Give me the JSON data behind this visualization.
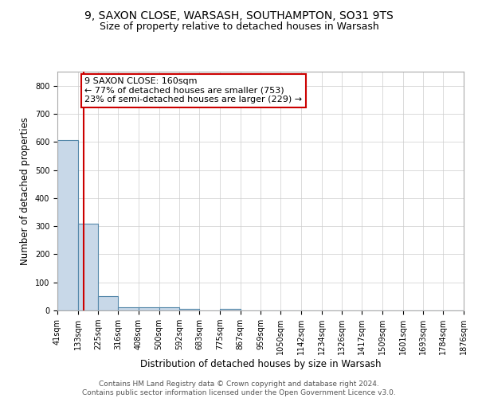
{
  "title": "9, SAXON CLOSE, WARSASH, SOUTHAMPTON, SO31 9TS",
  "subtitle": "Size of property relative to detached houses in Warsash",
  "xlabel": "Distribution of detached houses by size in Warsash",
  "ylabel": "Number of detached properties",
  "bar_edges": [
    41,
    133,
    225,
    316,
    408,
    500,
    592,
    683,
    775,
    867,
    959,
    1050,
    1142,
    1234,
    1326,
    1417,
    1509,
    1601,
    1693,
    1784,
    1876
  ],
  "bar_heights": [
    607,
    310,
    50,
    10,
    12,
    12,
    5,
    0,
    5,
    0,
    0,
    0,
    0,
    0,
    0,
    0,
    0,
    0,
    0,
    0
  ],
  "bar_color": "#c8d8e8",
  "bar_edge_color": "#5588aa",
  "property_line_x": 160,
  "property_line_color": "#cc0000",
  "annotation_line1": "9 SAXON CLOSE: 160sqm",
  "annotation_line2": "← 77% of detached houses are smaller (753)",
  "annotation_line3": "23% of semi-detached houses are larger (229) →",
  "annotation_box_facecolor": "#ffffff",
  "annotation_box_edgecolor": "#cc0000",
  "ylim": [
    0,
    850
  ],
  "yticks": [
    0,
    100,
    200,
    300,
    400,
    500,
    600,
    700,
    800
  ],
  "footnote_line1": "Contains HM Land Registry data © Crown copyright and database right 2024.",
  "footnote_line2": "Contains public sector information licensed under the Open Government Licence v3.0.",
  "title_fontsize": 10,
  "subtitle_fontsize": 9,
  "tick_fontsize": 7,
  "label_fontsize": 8.5,
  "annotation_fontsize": 8,
  "footnote_fontsize": 6.5
}
